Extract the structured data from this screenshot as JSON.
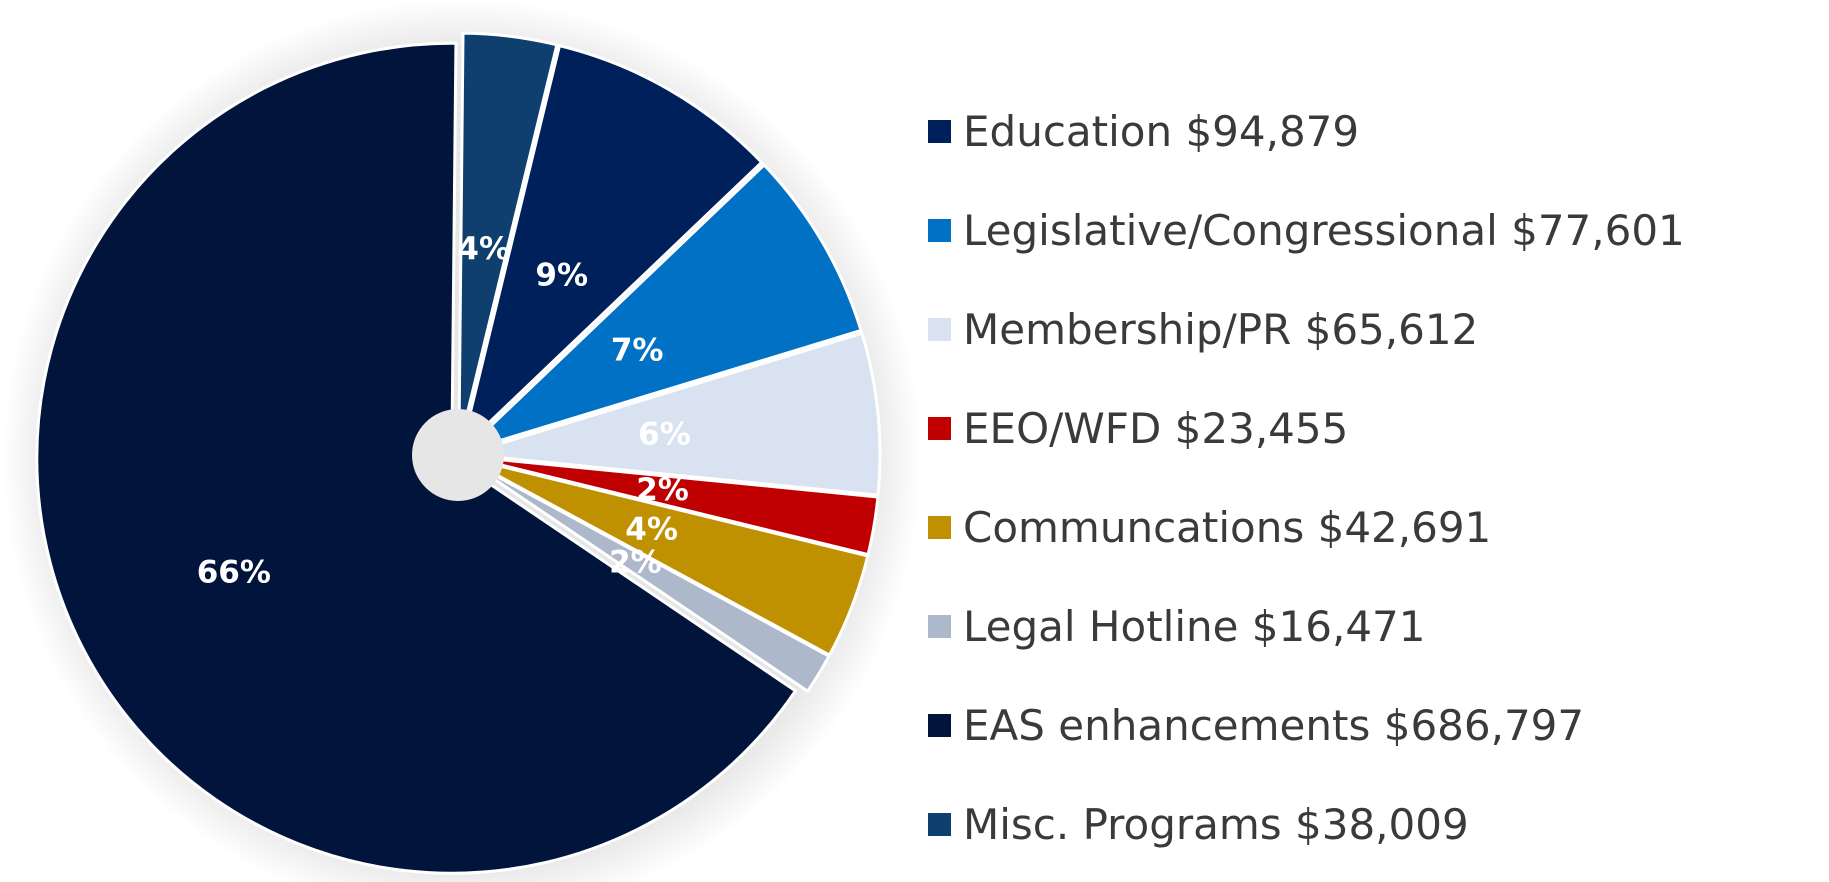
{
  "chart_data": {
    "type": "pie",
    "title": "",
    "slices": [
      {
        "label": "Misc. Programs $38,009",
        "value": 38009,
        "percent_label": "4%",
        "color": "#0e3f6e"
      },
      {
        "label": "Education $94,879",
        "value": 94879,
        "percent_label": "9%",
        "color": "#00205b"
      },
      {
        "label": "Legislative/Congressional $77,601",
        "value": 77601,
        "percent_label": "7%",
        "color": "#0071c5"
      },
      {
        "label": "Membership/PR $65,612",
        "value": 65612,
        "percent_label": "6%",
        "color": "#d9e2f0"
      },
      {
        "label": "EEO/WFD $23,455",
        "value": 23455,
        "percent_label": "2%",
        "color": "#c00000"
      },
      {
        "label": "Communcations $42,691",
        "value": 42691,
        "percent_label": "4%",
        "color": "#bf9000"
      },
      {
        "label": "Legal Hotline $16,471",
        "value": 16471,
        "percent_label": "2%",
        "color": "#adb9ca"
      },
      {
        "label": "EAS enhancements $686,797",
        "value": 686797,
        "percent_label": "66%",
        "color": "#00143c"
      }
    ],
    "legend_order": [
      "Education $94,879",
      "Legislative/Congressional $77,601",
      "Membership/PR $65,612",
      "EEO/WFD $23,455",
      "Communcations $42,691",
      "Legal Hotline $16,471",
      "EAS enhancements $686,797",
      "Misc. Programs $38,009"
    ],
    "legend_position": "right",
    "grid": false
  }
}
